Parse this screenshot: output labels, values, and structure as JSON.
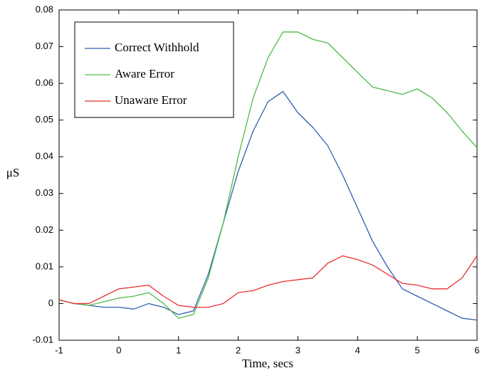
{
  "chart_data": {
    "type": "line",
    "xlabel": "Time,  secs",
    "ylabel": "μS",
    "x": [
      -1,
      -0.75,
      -0.5,
      -0.25,
      0,
      0.25,
      0.5,
      0.75,
      1,
      1.25,
      1.5,
      1.75,
      2,
      2.25,
      2.5,
      2.75,
      3,
      3.25,
      3.5,
      3.75,
      4,
      4.25,
      4.5,
      4.75,
      5,
      5.25,
      5.5,
      5.75,
      6
    ],
    "series": [
      {
        "name": "Correct Withhold",
        "color": "#2f5fb0",
        "values": [
          0.001,
          0,
          -0.0005,
          -0.001,
          -0.001,
          -0.0015,
          0,
          -0.001,
          -0.003,
          -0.002,
          0.008,
          0.022,
          0.036,
          0.047,
          0.055,
          0.0578,
          0.052,
          0.048,
          0.043,
          0.035,
          0.026,
          0.017,
          0.01,
          0.004,
          0.002,
          0,
          -0.002,
          -0.004,
          -0.0045
        ]
      },
      {
        "name": "Aware Error",
        "color": "#4cbb47",
        "values": [
          0.001,
          0,
          -0.0005,
          0.0005,
          0.0015,
          0.002,
          0.003,
          0,
          -0.004,
          -0.003,
          0.007,
          0.022,
          0.04,
          0.056,
          0.067,
          0.074,
          0.074,
          0.072,
          0.071,
          0.067,
          0.063,
          0.059,
          0.058,
          0.057,
          0.0585,
          0.056,
          0.052,
          0.047,
          0.0425
        ]
      },
      {
        "name": "Unaware Error",
        "color": "#e8312f",
        "values": [
          0.001,
          0,
          0,
          0.002,
          0.004,
          0.0045,
          0.005,
          0.002,
          -0.0005,
          -0.001,
          -0.001,
          0,
          0.003,
          0.0035,
          0.005,
          0.006,
          0.0065,
          0.007,
          0.011,
          0.013,
          0.012,
          0.0105,
          0.008,
          0.0055,
          0.005,
          0.004,
          0.004,
          0.007,
          0.013
        ]
      }
    ],
    "xlim": [
      -1,
      6
    ],
    "xticks": [
      -1,
      0,
      1,
      2,
      3,
      4,
      5,
      6
    ],
    "ylim": [
      -0.01,
      0.08
    ],
    "yticks": [
      -0.01,
      0,
      0.01,
      0.02,
      0.03,
      0.04,
      0.05,
      0.06,
      0.07,
      0.08
    ],
    "legend": "upper-left"
  }
}
